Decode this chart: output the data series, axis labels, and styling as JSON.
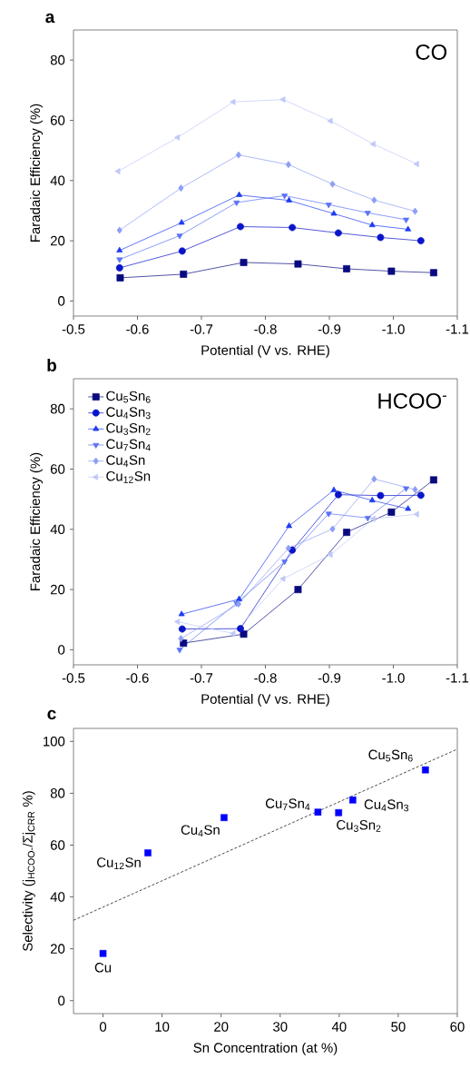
{
  "chart_data": [
    {
      "type": "line",
      "title": "a",
      "xlabel": "Potential (V vs. RHE)",
      "ylabel": "Faradaic Efficiency (%)",
      "annotations": [
        "CO"
      ],
      "xlim": [
        -0.5,
        -1.1
      ],
      "ylim": [
        -5,
        90
      ],
      "xticks": [
        -0.5,
        -0.6,
        -0.7,
        -0.8,
        -0.9,
        {
          "value": -1.0,
          "label": "-1.0"
        },
        -1.1
      ],
      "yticks": [
        0,
        20,
        40,
        60,
        80
      ],
      "grid": false,
      "legend": false,
      "series": [
        {
          "color": "#0a0a80",
          "marker": "square",
          "x": [
            -0.573,
            -0.672,
            -0.766,
            -0.851,
            -0.927,
            -0.997,
            -1.063
          ],
          "values": [
            7.7,
            8.9,
            12.8,
            12.3,
            10.7,
            9.9,
            9.4
          ]
        },
        {
          "color": "#0a14c8",
          "marker": "circle",
          "x": [
            -0.572,
            -0.67,
            -0.761,
            -0.842,
            -0.914,
            -0.98,
            -1.043
          ],
          "values": [
            11.0,
            16.6,
            24.7,
            24.4,
            22.6,
            21.1,
            20.0
          ]
        },
        {
          "color": "#1e3cf0",
          "marker": "triangle",
          "x": [
            -0.572,
            -0.669,
            -0.759,
            -0.837,
            -0.907,
            -0.967,
            -1.023
          ],
          "values": [
            16.8,
            26.0,
            35.2,
            33.4,
            29.0,
            25.2,
            23.8
          ]
        },
        {
          "color": "#5a72f5",
          "marker": "triangle-down",
          "x": [
            -0.572,
            -0.666,
            -0.755,
            -0.83,
            -0.899,
            -0.96,
            -1.02
          ],
          "values": [
            13.8,
            21.7,
            32.7,
            35.0,
            32.0,
            29.3,
            27.0
          ]
        },
        {
          "color": "#8c9ef5",
          "marker": "diamond",
          "x": [
            -0.572,
            -0.668,
            -0.758,
            -0.836,
            -0.905,
            -0.97,
            -1.034
          ],
          "values": [
            23.5,
            37.5,
            48.5,
            45.3,
            38.8,
            33.5,
            29.8
          ]
        },
        {
          "color": "#c0c8f8",
          "marker": "triangle-left",
          "x": [
            -0.57,
            -0.663,
            -0.75,
            -0.828,
            -0.902,
            -0.969,
            -1.037
          ],
          "values": [
            43.1,
            54.3,
            66.1,
            66.9,
            59.8,
            52.1,
            45.5
          ]
        }
      ]
    },
    {
      "type": "line",
      "title": "b",
      "xlabel": "Potential (V vs. RHE)",
      "ylabel": "Faradaic Efficiency (%)",
      "annotations": [
        "HCOO$^{-}$"
      ],
      "xlim": [
        -0.5,
        -1.1
      ],
      "ylim": [
        -5,
        90
      ],
      "xticks": [
        -0.5,
        -0.6,
        -0.7,
        -0.8,
        -0.9,
        {
          "value": -1.0,
          "label": "-1.0"
        },
        -1.1
      ],
      "yticks": [
        0,
        20,
        40,
        60,
        80
      ],
      "grid": false,
      "legend": "top left",
      "series": [
        {
          "name": "Cu$_{5}$Sn$_{6}$",
          "color": "#0a0a80",
          "marker": "square",
          "x": [
            -0.672,
            -0.766,
            -0.851,
            -0.927,
            -0.997,
            -1.063
          ],
          "values": [
            2.2,
            5.2,
            20.0,
            39.0,
            45.7,
            56.4
          ]
        },
        {
          "name": "Cu$_{4}$Sn$_{3}$",
          "color": "#0a14c8",
          "marker": "circle",
          "x": [
            -0.67,
            -0.761,
            -0.842,
            -0.914,
            -0.98,
            -1.043
          ],
          "values": [
            6.9,
            7.0,
            33.1,
            51.5,
            51.2,
            51.3
          ]
        },
        {
          "name": "Cu$_{3}$Sn$_{2}$",
          "color": "#1e3cf0",
          "marker": "triangle",
          "x": [
            -0.669,
            -0.759,
            -0.837,
            -0.907,
            -0.967,
            -1.023
          ],
          "values": [
            11.8,
            16.8,
            41.1,
            53.0,
            49.6,
            46.8
          ]
        },
        {
          "name": "Cu$_{7}$Sn$_{4}$",
          "color": "#5a72f5",
          "marker": "triangle-down",
          "x": [
            -0.666,
            -0.755,
            -0.83,
            -0.899,
            -0.96,
            -1.02
          ],
          "values": [
            0,
            15.5,
            29.3,
            45.2,
            43.8,
            53.6
          ]
        },
        {
          "name": "Cu$_{4}$Sn",
          "color": "#8c9ef5",
          "marker": "diamond",
          "x": [
            -0.668,
            -0.758,
            -0.836,
            -0.905,
            -0.97,
            -1.034
          ],
          "values": [
            3.7,
            15.2,
            33.7,
            40.1,
            56.7,
            53.2
          ]
        },
        {
          "name": "Cu$_{12}$Sn",
          "color": "#c0c8f8",
          "marker": "triangle-left",
          "x": [
            -0.663,
            -0.75,
            -0.828,
            -0.902,
            -0.969,
            -1.037
          ],
          "values": [
            9.3,
            5.4,
            23.6,
            31.6,
            43.5,
            45.0
          ]
        }
      ]
    },
    {
      "type": "scatter",
      "title": "c",
      "xlabel": "Sn Concentration (at %)",
      "ylabel": "Selectivity (j$_{HCOO-}$/Σj$_{CRR}$ %)",
      "xlim": [
        -5,
        60
      ],
      "ylim": [
        -5,
        105
      ],
      "xticks": [
        0,
        10,
        20,
        30,
        40,
        50,
        60
      ],
      "yticks": [
        0,
        20,
        40,
        60,
        80,
        100
      ],
      "grid": false,
      "legend": false,
      "annotations": [
        {
          "text": "Cu",
          "x": 0,
          "y": 18.2
        },
        {
          "text": "Cu$_{12}$Sn",
          "x": 7.6,
          "y": 57.0
        },
        {
          "text": "Cu$_{4}$Sn",
          "x": 20.5,
          "y": 70.6
        },
        {
          "text": "Cu$_{7}$Sn$_{4}$",
          "x": 36.4,
          "y": 72.7
        },
        {
          "text": "Cu$_{3}$Sn$_{2}$",
          "x": 39.9,
          "y": 72.5
        },
        {
          "text": "Cu$_{4}$Sn$_{3}$",
          "x": 42.3,
          "y": 77.4
        },
        {
          "text": "Cu$_{5}$Sn$_{6}$",
          "x": 54.6,
          "y": 89.0
        }
      ],
      "series": [
        {
          "color": "#0000ff",
          "marker": "square",
          "x": [
            0,
            7.6,
            20.5,
            36.4,
            39.9,
            42.3,
            54.6
          ],
          "values": [
            18.2,
            57.0,
            70.6,
            72.7,
            72.5,
            77.4,
            89.0
          ]
        },
        {
          "type": "line",
          "color": "#000000",
          "marker": "none",
          "line_style": "dashed",
          "x": [
            -5,
            60
          ],
          "values": [
            31.0,
            97.0
          ]
        }
      ]
    }
  ]
}
